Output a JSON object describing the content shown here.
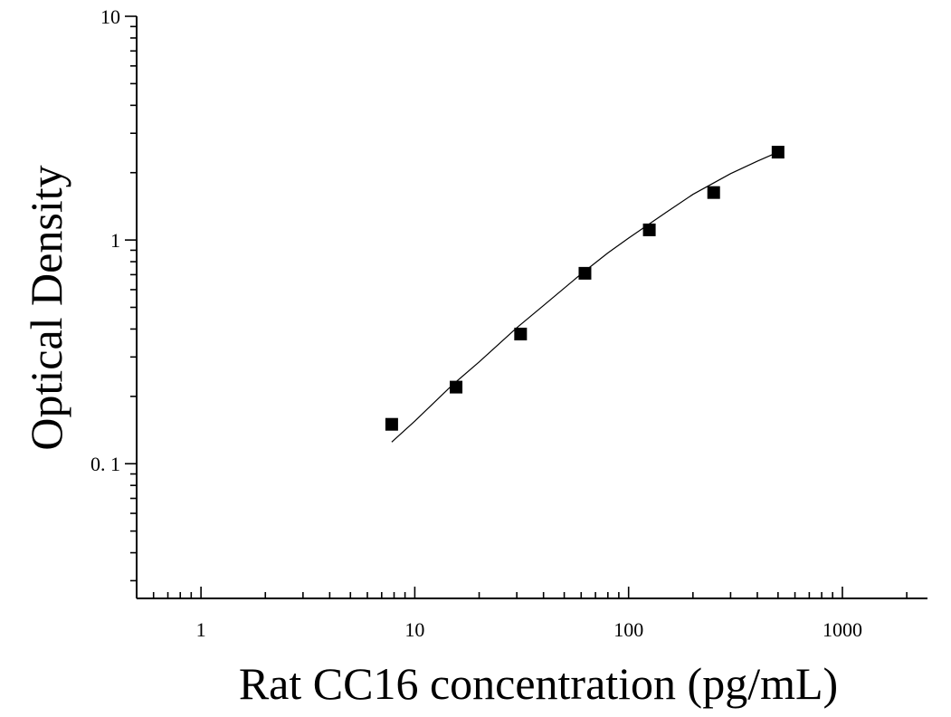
{
  "chart_data": {
    "type": "scatter",
    "title": "",
    "xlabel": "Rat CC16 concentration (pg/mL)",
    "ylabel": "Optical Density",
    "xscale": "log",
    "yscale": "log",
    "xlim": [
      0.5,
      2500
    ],
    "ylim": [
      0.025,
      10
    ],
    "x_ticks": [
      {
        "value": 1,
        "label": "1"
      },
      {
        "value": 10,
        "label": "10"
      },
      {
        "value": 100,
        "label": "100"
      },
      {
        "value": 1000,
        "label": "1000"
      }
    ],
    "y_ticks": [
      {
        "value": 0.1,
        "label": "0. 1"
      },
      {
        "value": 1,
        "label": "1"
      },
      {
        "value": 10,
        "label": "10"
      }
    ],
    "grid": false,
    "legend": false,
    "series": [
      {
        "marker": "square",
        "x": [
          7.8,
          15.6,
          31.25,
          62.5,
          125,
          250,
          500
        ],
        "y": [
          0.15,
          0.22,
          0.38,
          0.71,
          1.11,
          1.63,
          2.47
        ]
      }
    ],
    "fit_curve": {
      "x": [
        7.8,
        10,
        15,
        20,
        30,
        40,
        60,
        80,
        100,
        150,
        200,
        300,
        400,
        500
      ],
      "y": [
        0.125,
        0.155,
        0.225,
        0.285,
        0.405,
        0.51,
        0.705,
        0.875,
        1.02,
        1.33,
        1.6,
        1.98,
        2.25,
        2.47
      ]
    }
  }
}
